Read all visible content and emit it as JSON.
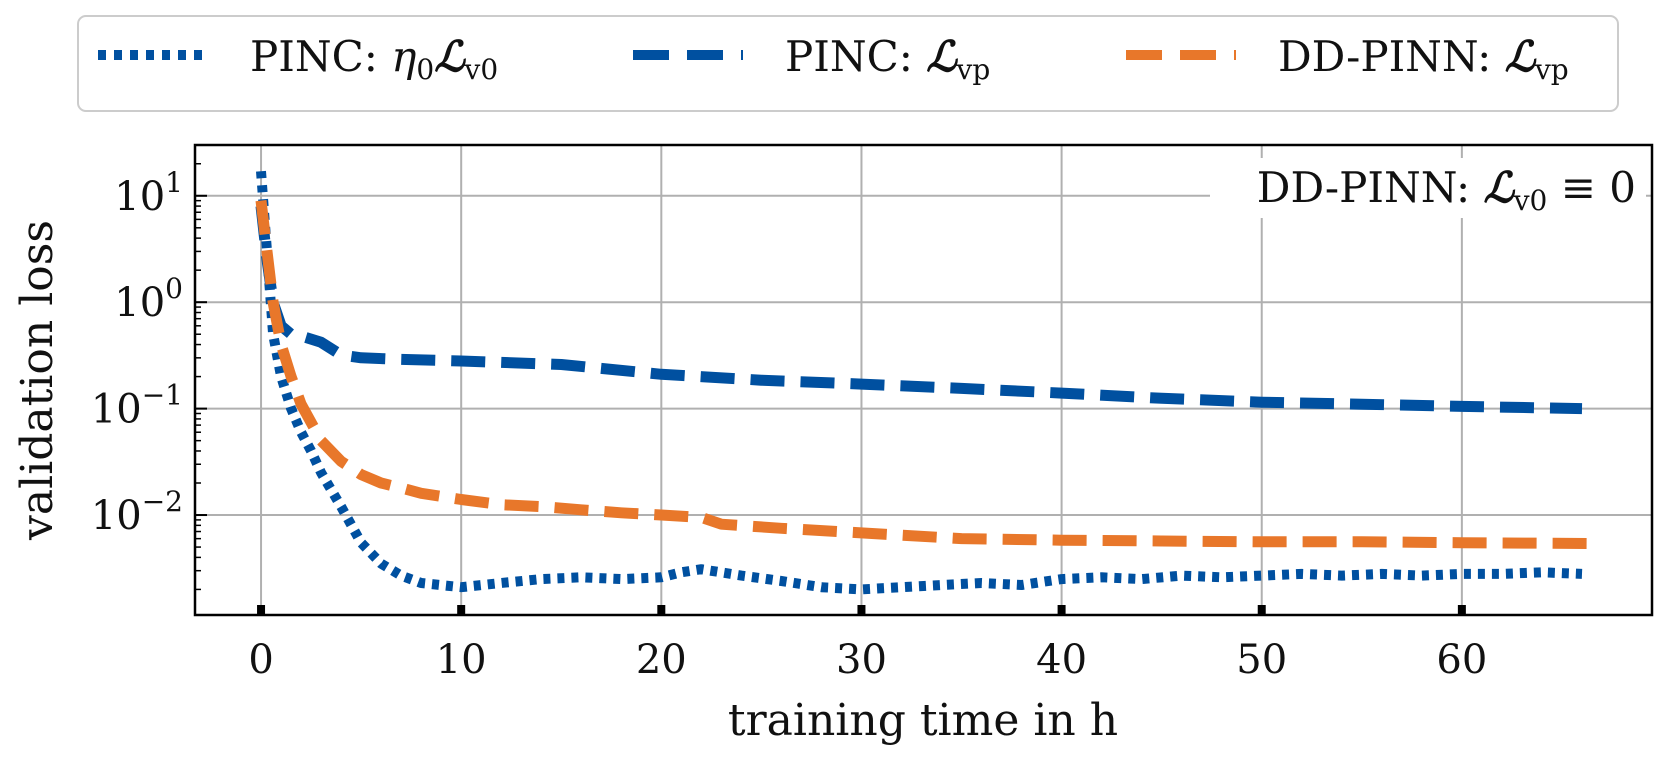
{
  "chart_data": {
    "type": "line",
    "xlabel": "training time in h",
    "ylabel": "validation loss",
    "yscale": "log",
    "xlim": [
      -3.3,
      69.5
    ],
    "ylim": [
      0.00115,
      30
    ],
    "grid": true,
    "legend_placement": "above plot, horizontal",
    "x_ticks": [
      0,
      10,
      20,
      30,
      40,
      50,
      60
    ],
    "x_tick_labels": [
      "0",
      "10",
      "20",
      "30",
      "40",
      "50",
      "60"
    ],
    "y_ticks": [
      10,
      1,
      0.1,
      0.01
    ],
    "y_tick_labels": [
      {
        "base": "10",
        "exp": "1"
      },
      {
        "base": "10",
        "exp": "0"
      },
      {
        "base": "10",
        "exp": "−1"
      },
      {
        "base": "10",
        "exp": "−2"
      }
    ],
    "annotation": {
      "prefix": "DD-PINN: ",
      "symbol": "ℒ",
      "subscript": "v0",
      "suffix": " ≡ 0"
    },
    "series": [
      {
        "name": "PINC: η0Lv0",
        "legend": {
          "prefix": "PINC: ",
          "eta": "η",
          "eta_sub": "0",
          "symbol": "ℒ",
          "sub": "v0"
        },
        "color": "#0050a0",
        "style": "dotted",
        "x": [
          0,
          0.3,
          0.6,
          1,
          1.5,
          2,
          2.5,
          3,
          4,
          5,
          6,
          7,
          8,
          10,
          12,
          14,
          16,
          18,
          20,
          21,
          22,
          24,
          26,
          28,
          30,
          32,
          34,
          36,
          38,
          40,
          42,
          44,
          46,
          48,
          50,
          52,
          54,
          56,
          58,
          60,
          62,
          64,
          66
        ],
        "y": [
          17,
          3,
          0.5,
          0.2,
          0.1,
          0.06,
          0.04,
          0.025,
          0.012,
          0.0055,
          0.0035,
          0.0027,
          0.0023,
          0.0021,
          0.0023,
          0.0025,
          0.0026,
          0.0025,
          0.0026,
          0.0029,
          0.0031,
          0.0027,
          0.0024,
          0.0021,
          0.002,
          0.0021,
          0.0022,
          0.0023,
          0.0022,
          0.0025,
          0.0026,
          0.0025,
          0.0027,
          0.0026,
          0.0027,
          0.0028,
          0.0027,
          0.0028,
          0.0027,
          0.0028,
          0.0028,
          0.0029,
          0.0028
        ]
      },
      {
        "name": "PINC: Lvp",
        "legend": {
          "prefix": "PINC: ",
          "symbol": "ℒ",
          "sub": "vp"
        },
        "color": "#0050a0",
        "style": "dashed",
        "x": [
          0,
          0.3,
          0.6,
          1,
          1.5,
          2,
          2.5,
          3,
          4,
          5,
          7,
          10,
          15,
          20,
          25,
          30,
          35,
          40,
          45,
          50,
          55,
          60,
          66
        ],
        "y": [
          8,
          2.5,
          1.0,
          0.6,
          0.5,
          0.48,
          0.45,
          0.42,
          0.32,
          0.3,
          0.29,
          0.28,
          0.26,
          0.21,
          0.185,
          0.17,
          0.155,
          0.14,
          0.125,
          0.115,
          0.11,
          0.105,
          0.1
        ]
      },
      {
        "name": "DD-PINN: Lvp",
        "legend": {
          "prefix": "DD-PINN: ",
          "symbol": "ℒ",
          "sub": "vp"
        },
        "color": "#e8772a",
        "style": "dashed",
        "x": [
          0,
          0.3,
          0.6,
          1,
          1.5,
          2,
          3,
          4,
          5,
          6,
          7,
          8,
          10,
          12,
          14,
          16,
          18,
          20,
          22,
          23,
          26,
          30,
          35,
          40,
          45,
          50,
          55,
          60,
          66.5
        ],
        "y": [
          9,
          3,
          1.0,
          0.4,
          0.2,
          0.11,
          0.05,
          0.032,
          0.024,
          0.02,
          0.018,
          0.016,
          0.014,
          0.0125,
          0.012,
          0.0112,
          0.0105,
          0.01,
          0.0095,
          0.0082,
          0.0075,
          0.0068,
          0.006,
          0.0058,
          0.0057,
          0.0056,
          0.0056,
          0.0055,
          0.0054
        ]
      }
    ]
  }
}
